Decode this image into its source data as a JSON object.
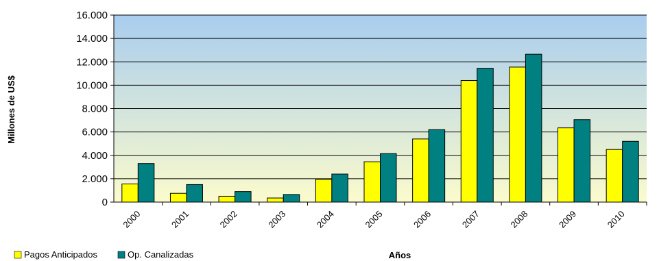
{
  "chart_data": {
    "type": "bar",
    "categories": [
      "2000",
      "2001",
      "2002",
      "2003",
      "2004",
      "2005",
      "2006",
      "2007",
      "2008",
      "2009",
      "2010"
    ],
    "series": [
      {
        "name": "Pagos Anticipados",
        "color": "#ffff00",
        "values": [
          1550,
          750,
          500,
          350,
          1950,
          3450,
          5400,
          10400,
          11550,
          6350,
          4500
        ]
      },
      {
        "name": "Op. Canalizadas",
        "color": "#008080",
        "values": [
          3300,
          1500,
          900,
          650,
          2400,
          4150,
          6200,
          11450,
          12650,
          7050,
          5200
        ]
      }
    ],
    "ylabel": "Millones de US$",
    "xlabel": "Años",
    "ylim": [
      0,
      16000
    ],
    "yticks": [
      "0",
      "2.000",
      "4.000",
      "6.000",
      "8.000",
      "10.000",
      "12.000",
      "14.000",
      "16.000"
    ],
    "grid": true,
    "legend": "bottom-left",
    "background_gradient": [
      "#a9cdef",
      "#fbfbcc"
    ]
  }
}
